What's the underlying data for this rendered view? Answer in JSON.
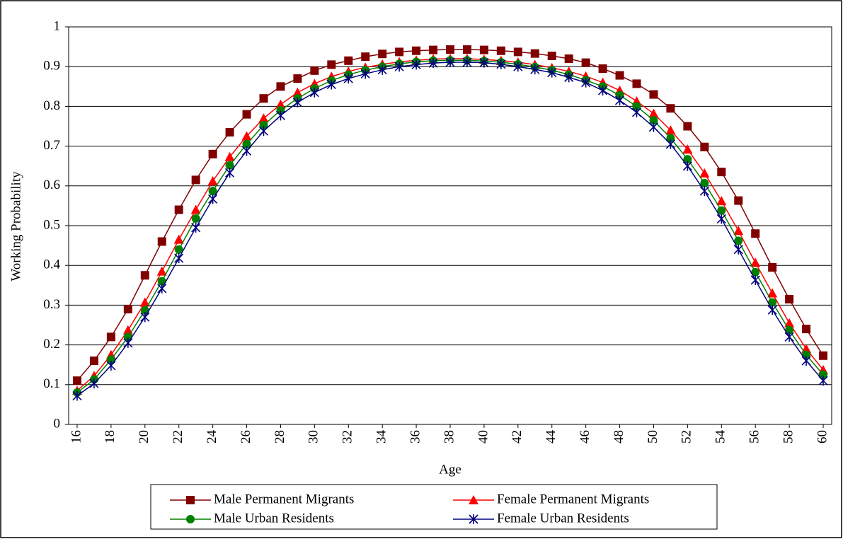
{
  "chart_data": {
    "type": "line",
    "x_label": "Age",
    "y_label": "Working Probability",
    "x": [
      16,
      17,
      18,
      19,
      20,
      21,
      22,
      23,
      24,
      25,
      26,
      27,
      28,
      29,
      30,
      31,
      32,
      33,
      34,
      35,
      36,
      37,
      38,
      39,
      40,
      41,
      42,
      43,
      44,
      45,
      46,
      47,
      48,
      49,
      50,
      51,
      52,
      53,
      54,
      55,
      56,
      57,
      58,
      59,
      60
    ],
    "xlim": [
      15.5,
      60.5
    ],
    "xticks": [
      16,
      18,
      20,
      22,
      24,
      26,
      28,
      30,
      32,
      34,
      36,
      38,
      40,
      42,
      44,
      46,
      48,
      50,
      52,
      54,
      56,
      58,
      60
    ],
    "ylim": [
      0,
      1
    ],
    "yticks": [
      0,
      0.1,
      0.2,
      0.3,
      0.4,
      0.5,
      0.6,
      0.7,
      0.8,
      0.9,
      1
    ],
    "grid": true,
    "legend": "bottom",
    "series": [
      {
        "name": "Male Permanent Migrants",
        "color": "#800000",
        "marker": "square",
        "values": [
          0.11,
          0.16,
          0.22,
          0.29,
          0.375,
          0.46,
          0.54,
          0.615,
          0.68,
          0.735,
          0.78,
          0.82,
          0.85,
          0.87,
          0.89,
          0.905,
          0.915,
          0.925,
          0.932,
          0.937,
          0.94,
          0.942,
          0.943,
          0.943,
          0.942,
          0.94,
          0.937,
          0.933,
          0.927,
          0.92,
          0.91,
          0.895,
          0.878,
          0.857,
          0.83,
          0.795,
          0.75,
          0.698,
          0.635,
          0.563,
          0.48,
          0.395,
          0.315,
          0.24,
          0.173
        ]
      },
      {
        "name": "Female Permanent Migrants",
        "color": "#ff0000",
        "marker": "triangle",
        "values": [
          0.085,
          0.122,
          0.175,
          0.237,
          0.307,
          0.385,
          0.465,
          0.54,
          0.612,
          0.673,
          0.725,
          0.77,
          0.805,
          0.835,
          0.857,
          0.875,
          0.888,
          0.898,
          0.906,
          0.912,
          0.916,
          0.919,
          0.92,
          0.92,
          0.918,
          0.915,
          0.911,
          0.905,
          0.897,
          0.888,
          0.876,
          0.86,
          0.84,
          0.813,
          0.782,
          0.74,
          0.692,
          0.632,
          0.562,
          0.487,
          0.407,
          0.33,
          0.255,
          0.19,
          0.137
        ]
      },
      {
        "name": "Male Urban Residents",
        "color": "#008000",
        "marker": "circle",
        "values": [
          0.08,
          0.113,
          0.163,
          0.22,
          0.287,
          0.36,
          0.44,
          0.518,
          0.587,
          0.652,
          0.705,
          0.753,
          0.79,
          0.82,
          0.845,
          0.865,
          0.88,
          0.891,
          0.9,
          0.907,
          0.912,
          0.915,
          0.916,
          0.916,
          0.914,
          0.911,
          0.906,
          0.899,
          0.891,
          0.88,
          0.866,
          0.85,
          0.828,
          0.8,
          0.765,
          0.72,
          0.667,
          0.607,
          0.538,
          0.462,
          0.383,
          0.307,
          0.237,
          0.175,
          0.125
        ]
      },
      {
        "name": "Female Urban Residents",
        "color": "#000080",
        "marker": "star",
        "values": [
          0.072,
          0.103,
          0.148,
          0.205,
          0.27,
          0.342,
          0.418,
          0.495,
          0.567,
          0.633,
          0.688,
          0.738,
          0.777,
          0.81,
          0.835,
          0.855,
          0.87,
          0.882,
          0.892,
          0.9,
          0.905,
          0.909,
          0.911,
          0.911,
          0.91,
          0.906,
          0.9,
          0.893,
          0.885,
          0.873,
          0.86,
          0.84,
          0.815,
          0.785,
          0.748,
          0.705,
          0.65,
          0.587,
          0.517,
          0.44,
          0.363,
          0.288,
          0.22,
          0.16,
          0.11
        ]
      }
    ]
  }
}
